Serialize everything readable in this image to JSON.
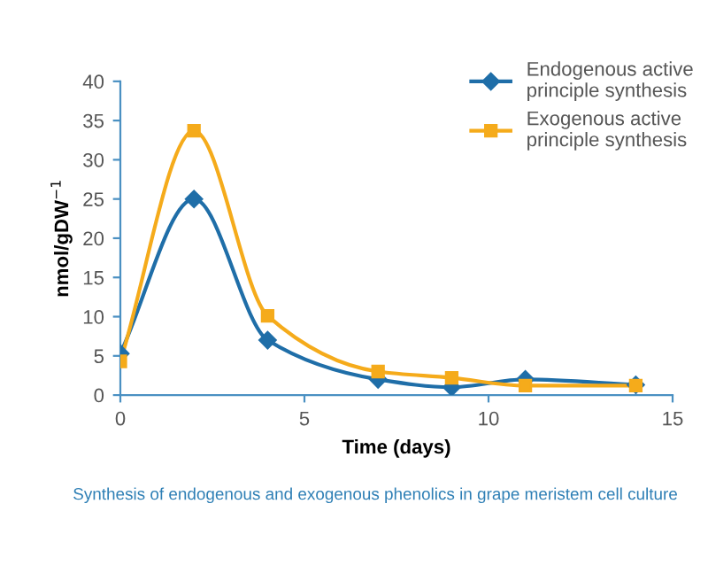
{
  "chart_data": {
    "type": "line",
    "x": [
      0,
      2,
      4,
      7,
      9,
      11,
      14
    ],
    "series": [
      {
        "name": "Endogenous active\nprinciple synthesis",
        "color": "#1f6ea8",
        "marker": "diamond",
        "values": [
          5.3,
          25,
          7,
          2,
          1,
          2,
          1.3
        ]
      },
      {
        "name": "Exogenous active\nprinciple synthesis",
        "color": "#f5ab1b",
        "marker": "square",
        "values": [
          4.3,
          33.7,
          10.1,
          3,
          2.2,
          1.2,
          1.2
        ]
      }
    ],
    "xlabel": "Time (days)",
    "ylabel": "nmol/gDW$^{−1}$",
    "xlim": [
      0,
      15
    ],
    "xticks": [
      0,
      5,
      10,
      15
    ],
    "ylim": [
      0,
      40
    ],
    "yticks": [
      0,
      5,
      10,
      15,
      20,
      25,
      30,
      35,
      40
    ],
    "grid": false,
    "legend": "top right",
    "line_style": "solid",
    "annotations": [
      "Synthesis of endogenous and exogenous phenolics in grape meristem cell culture"
    ]
  }
}
